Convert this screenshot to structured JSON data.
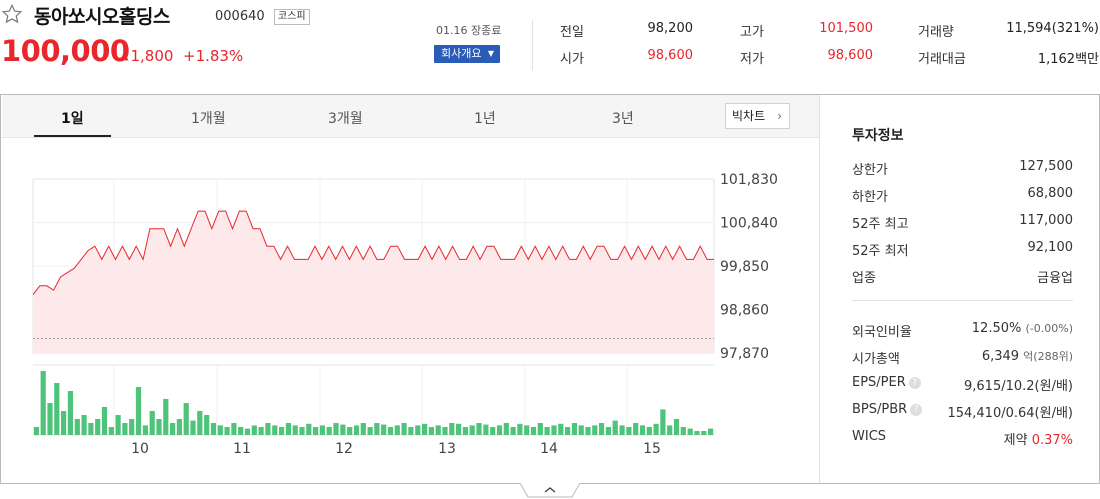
{
  "header": {
    "name": "동아쏘시오홀딩스",
    "code": "000640",
    "market": "코스피",
    "price": "100,000",
    "change": "1,800",
    "change_pct": "+1.83%",
    "date_status": "01.16 장종료",
    "company_button": "회사개요",
    "stats": [
      {
        "label": "전일",
        "value": "98,200",
        "color": "#333333"
      },
      {
        "label": "고가",
        "value": "101,500",
        "color": "#e8262c"
      },
      {
        "label": "거래량",
        "value": "11,594(321%)",
        "color": "#333333"
      },
      {
        "label": "시가",
        "value": "98,600",
        "color": "#e8262c"
      },
      {
        "label": "저가",
        "value": "98,600",
        "color": "#e8262c"
      },
      {
        "label": "거래대금",
        "value": "1,162백만",
        "color": "#333333"
      }
    ]
  },
  "tabs": [
    "1일",
    "1개월",
    "3개월",
    "1년",
    "3년"
  ],
  "big_chart_button": "빅차트",
  "chart_data": {
    "type": "line",
    "series": [
      {
        "values": [
          99200,
          99400,
          99400,
          99300,
          99600,
          99700,
          99800,
          100000,
          100200,
          100300,
          100000,
          100300,
          100000,
          100300,
          100000,
          100300,
          100000,
          100700,
          100700,
          100700,
          100300,
          100700,
          100300,
          100700,
          101100,
          101100,
          100700,
          101100,
          101100,
          100700,
          101100,
          101100,
          100700,
          100700,
          100300,
          100300,
          100000,
          100300,
          100000,
          100000,
          100000,
          100300,
          100000,
          100300,
          100000,
          100300,
          100000,
          100300,
          100000,
          100300,
          100000,
          100000,
          100300,
          100300,
          100000,
          100000,
          100000,
          100300,
          100000,
          100300,
          100000,
          100300,
          100000,
          100000,
          100300,
          100000,
          100300,
          100300,
          100000,
          100000,
          100000,
          100300,
          100000,
          100300,
          100000,
          100300,
          100000,
          100300,
          100000,
          100000,
          100300,
          100000,
          100300,
          100300,
          100000,
          100000,
          100300,
          100000,
          100300,
          100000,
          100300,
          100000,
          100300,
          100000,
          100300,
          100000,
          100000,
          100300,
          100000,
          100000
        ]
      },
      {
        "type": "bar",
        "values": [
          10,
          80,
          40,
          65,
          30,
          55,
          20,
          25,
          15,
          20,
          35,
          10,
          25,
          15,
          20,
          60,
          12,
          30,
          20,
          45,
          15,
          20,
          40,
          18,
          30,
          25,
          15,
          12,
          10,
          15,
          10,
          8,
          12,
          10,
          15,
          12,
          10,
          15,
          12,
          10,
          14,
          10,
          12,
          10,
          15,
          13,
          10,
          12,
          15,
          10,
          15,
          13,
          10,
          12,
          15,
          10,
          12,
          14,
          10,
          12,
          10,
          15,
          14,
          10,
          12,
          15,
          13,
          10,
          12,
          15,
          10,
          14,
          12,
          10,
          15,
          10,
          12,
          14,
          10,
          15,
          12,
          10,
          12,
          15,
          10,
          18,
          12,
          10,
          15,
          12,
          10,
          14,
          32,
          12,
          20,
          10,
          8,
          5,
          5,
          8
        ]
      }
    ],
    "y_ticks": [
      "101,830",
      "100,840",
      "99,850",
      "98,860",
      "97,870"
    ],
    "x_ticks": [
      "10",
      "11",
      "12",
      "13",
      "14",
      "15"
    ],
    "ylim": [
      97870,
      101830
    ],
    "baseline": 98200,
    "line_color": "#e8262c",
    "fill_color": "#fde9ea",
    "volume_color": "#4dc47a"
  },
  "invest": {
    "title": "투자정보",
    "rows1": [
      {
        "label": "상한가",
        "value": "127,500",
        "color": "#e8262c"
      },
      {
        "label": "하한가",
        "value": "68,800",
        "color": "#2b56b2"
      },
      {
        "label": "52주 최고",
        "value": "117,000",
        "color": "#333333"
      },
      {
        "label": "52주 최저",
        "value": "92,100",
        "color": "#333333"
      },
      {
        "label": "업종",
        "value": "금융업",
        "color": "#333333"
      }
    ],
    "foreign_label": "외국인비율",
    "foreign_value": "12.50%",
    "foreign_change": "(-0.00%)",
    "mcap_label": "시가총액",
    "mcap_value": "6,349",
    "mcap_unit": "억",
    "mcap_usd": "(288위)",
    "eps_label": "EPS/PER",
    "eps_value": "9,615/10.2",
    "eps_unit": "(원/배)",
    "bps_label": "BPS/PBR",
    "bps_value": "154,410/0.64",
    "bps_unit": "(원/배)",
    "wics_label": "WICS",
    "wics_value": "제약",
    "wics_change": "0.37%"
  }
}
